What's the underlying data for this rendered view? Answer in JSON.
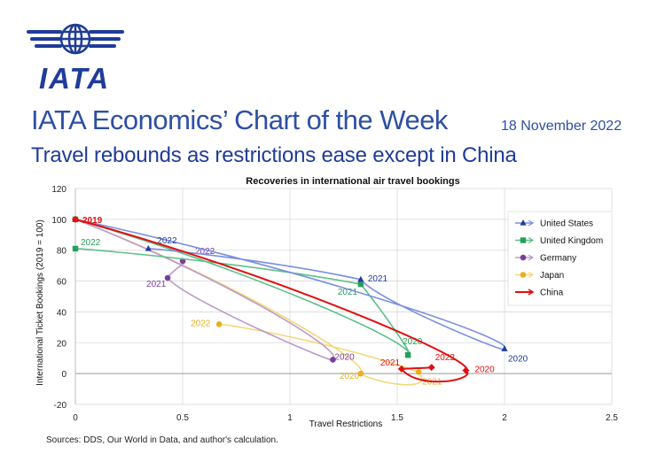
{
  "header": {
    "logo_text": "IATA",
    "title": "IATA Economics’ Chart of the Week",
    "date": "18 November 2022",
    "subtitle": "Travel rebounds as restrictions ease except in China"
  },
  "footer": {
    "source": "Sources: DDS, Our World in Data, and author's calculation."
  },
  "colors": {
    "brand": "#1f3c99",
    "title": "#2e4fa3"
  },
  "chart_data": {
    "type": "scatter",
    "title": "Recoveries in international air travel bookings",
    "xlabel": "Travel Restrictions",
    "ylabel": "International Ticket Bookings (2019 = 100)",
    "xlim": [
      0,
      2.5
    ],
    "ylim": [
      -20,
      120
    ],
    "xticks": [
      "0",
      "0.5",
      "1",
      "1.5",
      "2",
      "2.5"
    ],
    "yticks": [
      "-20",
      "0",
      "20",
      "40",
      "60",
      "80",
      "100",
      "120"
    ],
    "grid": true,
    "legend_position": "right",
    "series": [
      {
        "name": "United States",
        "color": "#7b8fdd",
        "label_color": "#1f3c99",
        "marker": "triangle",
        "points": [
          {
            "x": 0.0,
            "y": 100,
            "label": "2019"
          },
          {
            "x": 2.0,
            "y": 16,
            "label": "2020"
          },
          {
            "x": 1.33,
            "y": 61,
            "label": "2021"
          },
          {
            "x": 0.34,
            "y": 81,
            "label": "2022"
          }
        ]
      },
      {
        "name": "United Kingdom",
        "color": "#5cc08a",
        "label_color": "#23a05a",
        "marker": "square",
        "points": [
          {
            "x": 0.0,
            "y": 100,
            "label": "2019"
          },
          {
            "x": 1.55,
            "y": 12,
            "label": "2020"
          },
          {
            "x": 1.33,
            "y": 58,
            "label": "2021"
          },
          {
            "x": 0.0,
            "y": 81,
            "label": "2022"
          }
        ]
      },
      {
        "name": "Germany",
        "color": "#bb9ac8",
        "label_color": "#7b3f99",
        "marker": "circle",
        "points": [
          {
            "x": 0.0,
            "y": 100,
            "label": "2019"
          },
          {
            "x": 1.2,
            "y": 9,
            "label": "2020"
          },
          {
            "x": 0.43,
            "y": 62,
            "label": "2021"
          },
          {
            "x": 0.5,
            "y": 73,
            "label": "2022"
          }
        ]
      },
      {
        "name": "Japan",
        "color": "#f5d77a",
        "label_color": "#e8b020",
        "marker": "circle",
        "points": [
          {
            "x": 0.0,
            "y": 100,
            "label": "2019"
          },
          {
            "x": 1.33,
            "y": 0,
            "label": "2020"
          },
          {
            "x": 1.6,
            "y": 1,
            "label": "2021"
          },
          {
            "x": 0.67,
            "y": 32,
            "label": "2022"
          }
        ]
      },
      {
        "name": "China",
        "color": "#e01010",
        "label_color": "#e01010",
        "marker": "diamond",
        "points": [
          {
            "x": 0.0,
            "y": 100,
            "label": "2019"
          },
          {
            "x": 1.82,
            "y": 2,
            "label": "2020"
          },
          {
            "x": 1.52,
            "y": 3,
            "label": "2021"
          },
          {
            "x": 1.66,
            "y": 4,
            "label": "2022"
          }
        ]
      }
    ]
  }
}
